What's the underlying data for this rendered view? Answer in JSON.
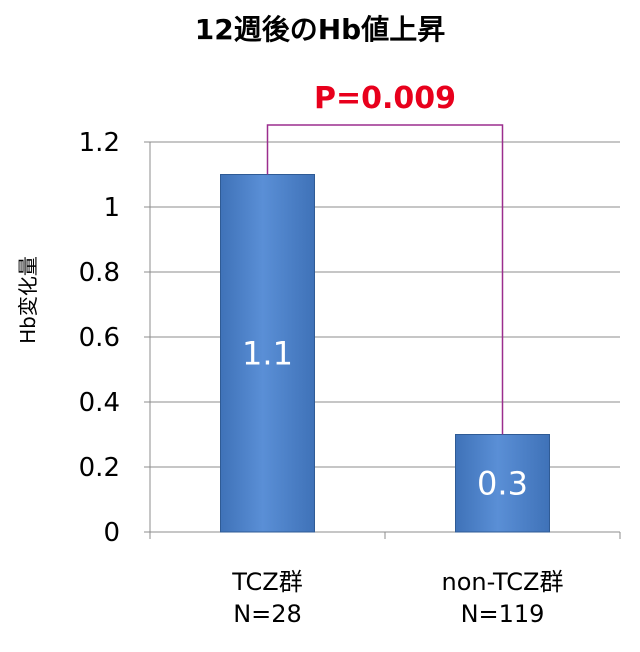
{
  "chart_data": {
    "type": "bar",
    "title": "12週後のHb値上昇",
    "ylabel": "Hb変化量",
    "xlabel": "",
    "ylim": [
      0,
      1.2
    ],
    "yticks": [
      "0",
      "0.2",
      "0.4",
      "0.6",
      "0.8",
      "1",
      "1.2"
    ],
    "ytick_values": [
      0,
      0.2,
      0.4,
      0.6,
      0.8,
      1.0,
      1.2
    ],
    "categories": [
      {
        "line1": "TCZ群",
        "line2": "N=28"
      },
      {
        "line1": "non-TCZ群",
        "line2": "N=119"
      }
    ],
    "values": [
      1.1,
      0.3
    ],
    "data_labels": [
      "1.1",
      "0.3"
    ],
    "grid": true,
    "annotation": {
      "text": "P=0.009",
      "color": "#e8001c",
      "bracket_color": "#9b2d8e"
    },
    "bar_color": "#3f72b8",
    "bar_color_light": "#5a8fd6",
    "grid_color": "#8c8c8c"
  }
}
